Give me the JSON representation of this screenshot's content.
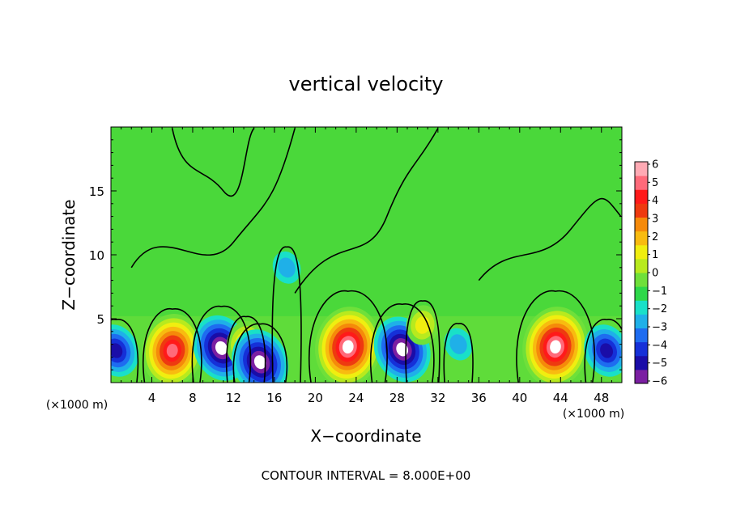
{
  "chart_data": {
    "type": "heatmap",
    "title": "vertical velocity",
    "xlabel": "X−coordinate",
    "ylabel": "Z−coordinate",
    "x_unit": "(×1000 m)",
    "z_unit": "(×1000 m)",
    "xlim": [
      0,
      50
    ],
    "zlim": [
      0,
      20
    ],
    "x_ticks": [
      4,
      8,
      12,
      16,
      20,
      24,
      28,
      32,
      36,
      40,
      44,
      48
    ],
    "z_ticks": [
      5,
      10,
      15
    ],
    "colorbar": {
      "levels": [
        "6",
        "5",
        "4",
        "3",
        "2",
        "1",
        "0",
        "−1",
        "−2",
        "−3",
        "−4",
        "−5",
        "−6"
      ],
      "colors": [
        "#7b1fa2",
        "#1a0da8",
        "#1530d8",
        "#1e6cf0",
        "#1fb0e8",
        "#19e0c8",
        "#2ed84a",
        "#6fe03a",
        "#b8ea1e",
        "#f0ee10",
        "#f8bb10",
        "#f58a0a",
        "#ee3a10",
        "#ff1a1a",
        "#ff6a7a",
        "#ffaab4"
      ],
      "range": [
        -6,
        6
      ]
    },
    "features": [
      {
        "kind": "updraft",
        "x": 6.0,
        "z": 2.5,
        "peak": 8
      },
      {
        "kind": "downdraft",
        "x": 10.8,
        "z": 2.7,
        "peak": -8
      },
      {
        "kind": "updraft",
        "x": 13.2,
        "z": 3.0,
        "peak": 4
      },
      {
        "kind": "downdraft",
        "x": 14.6,
        "z": 1.6,
        "peak": -7
      },
      {
        "kind": "updraft",
        "x": 23.2,
        "z": 2.8,
        "peak": 12
      },
      {
        "kind": "downdraft",
        "x": 28.5,
        "z": 2.6,
        "peak": -9
      },
      {
        "kind": "updraft",
        "x": 30.5,
        "z": 4.5,
        "peak": 3
      },
      {
        "kind": "downdraft",
        "x": 34.0,
        "z": 3.0,
        "peak": -2
      },
      {
        "kind": "updraft",
        "x": 43.5,
        "z": 2.8,
        "peak": 12
      },
      {
        "kind": "downdraft",
        "x": 48.5,
        "z": 2.5,
        "peak": -5
      },
      {
        "kind": "downdraft",
        "x": 0.5,
        "z": 2.5,
        "peak": -5
      },
      {
        "kind": "downdraft",
        "x": 17.2,
        "z": 9.0,
        "peak": -2
      }
    ]
  },
  "footer": {
    "contour_interval": "CONTOUR INTERVAL = 8.000E+00"
  }
}
